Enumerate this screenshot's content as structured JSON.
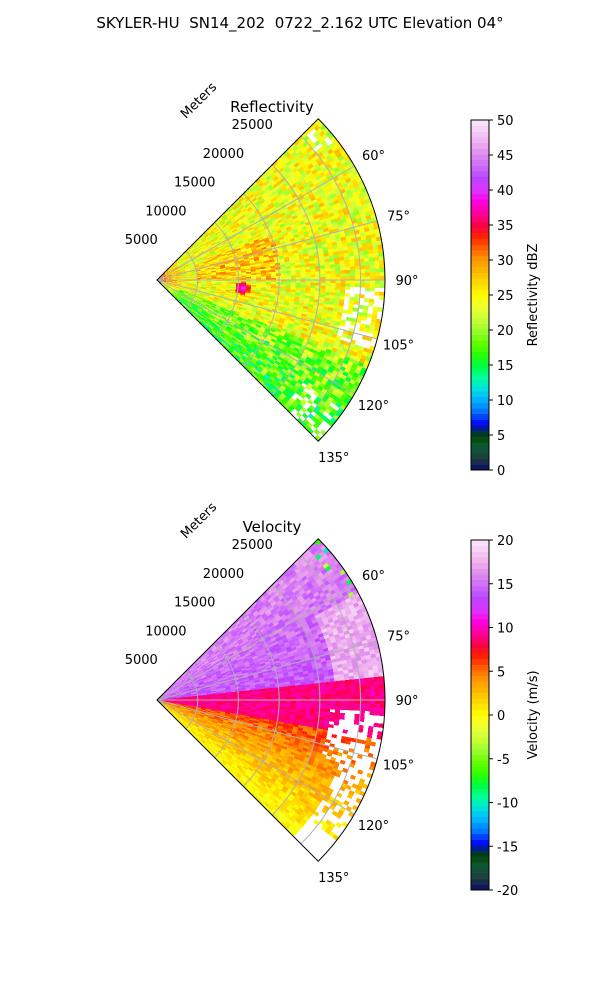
{
  "suptitle": "SKYLER-HU  SN14_202  0722_2.162 UTC Elevation 04°",
  "chart_data": [
    {
      "type": "heatmap",
      "subtype": "polar-sector",
      "title": "Reflectivity",
      "range_label": "Meters",
      "range_ticks": [
        5000,
        10000,
        15000,
        20000,
        25000
      ],
      "range_max": 28000,
      "angle_range_deg": [
        45,
        135
      ],
      "angle_ticks": [
        "60°",
        "75°",
        "90°",
        "105°",
        "120°",
        "135°"
      ],
      "grid": true,
      "colorbar": {
        "label": "Reflectivity dBZ",
        "min": 0,
        "max": 50,
        "ticks": [
          0,
          5,
          10,
          15,
          20,
          25,
          30,
          35,
          40,
          45,
          50
        ],
        "colors": [
          "#0a0a6e",
          "#1d3a3a",
          "#0f5a3a",
          "#004400",
          "#0000ff",
          "#0070ff",
          "#00b0ff",
          "#00e0e0",
          "#00ff9a",
          "#00ff40",
          "#30ff00",
          "#66ff00",
          "#99ff33",
          "#ccff33",
          "#eeff33",
          "#ffff00",
          "#ffdd00",
          "#ffbb00",
          "#ff9900",
          "#ff6600",
          "#ff2200",
          "#ff0044",
          "#ff0099",
          "#ff00dd",
          "#dd33ff",
          "#bb44ff",
          "#cc66ff",
          "#dd88ee",
          "#eeaaee",
          "#f4ccf4",
          "#fbe8fb"
        ]
      },
      "field_notes": [
        "mostly 20-32 dBZ",
        "strongest echoes near origin and at ~10 km, ~95°",
        "green band ~18-22 dBZ along 120-135°"
      ]
    },
    {
      "type": "heatmap",
      "subtype": "polar-sector",
      "title": "Velocity",
      "range_label": "Meters",
      "range_ticks": [
        5000,
        10000,
        15000,
        20000,
        25000
      ],
      "range_max": 28000,
      "angle_range_deg": [
        45,
        135
      ],
      "angle_ticks": [
        "60°",
        "75°",
        "90°",
        "105°",
        "120°",
        "135°"
      ],
      "grid": true,
      "colorbar": {
        "label": "Velocity (m/s)",
        "min": -20,
        "max": 20,
        "ticks": [
          -20,
          -15,
          -10,
          -5,
          0,
          5,
          10,
          15,
          20
        ],
        "colors": [
          "#0a0a6e",
          "#1d3a3a",
          "#0f5a3a",
          "#004400",
          "#0000ff",
          "#0070ff",
          "#00b0ff",
          "#00e0e0",
          "#00ff9a",
          "#00ff40",
          "#30ff00",
          "#66ff00",
          "#99ff33",
          "#ccff33",
          "#eeff33",
          "#ffff00",
          "#ffdd00",
          "#ffbb00",
          "#ff9900",
          "#ff6600",
          "#ff2200",
          "#ff0044",
          "#ff0099",
          "#ff00dd",
          "#dd33ff",
          "#bb44ff",
          "#cc66ff",
          "#dd88ee",
          "#eeaaee",
          "#f4ccf4",
          "#fbe8fb"
        ]
      },
      "field_notes": [
        "+12 to +18 m/s for 45-85°",
        "+8 to +10 m/s near 90-100°",
        "0 to +6 m/s for 100-135°"
      ]
    }
  ]
}
